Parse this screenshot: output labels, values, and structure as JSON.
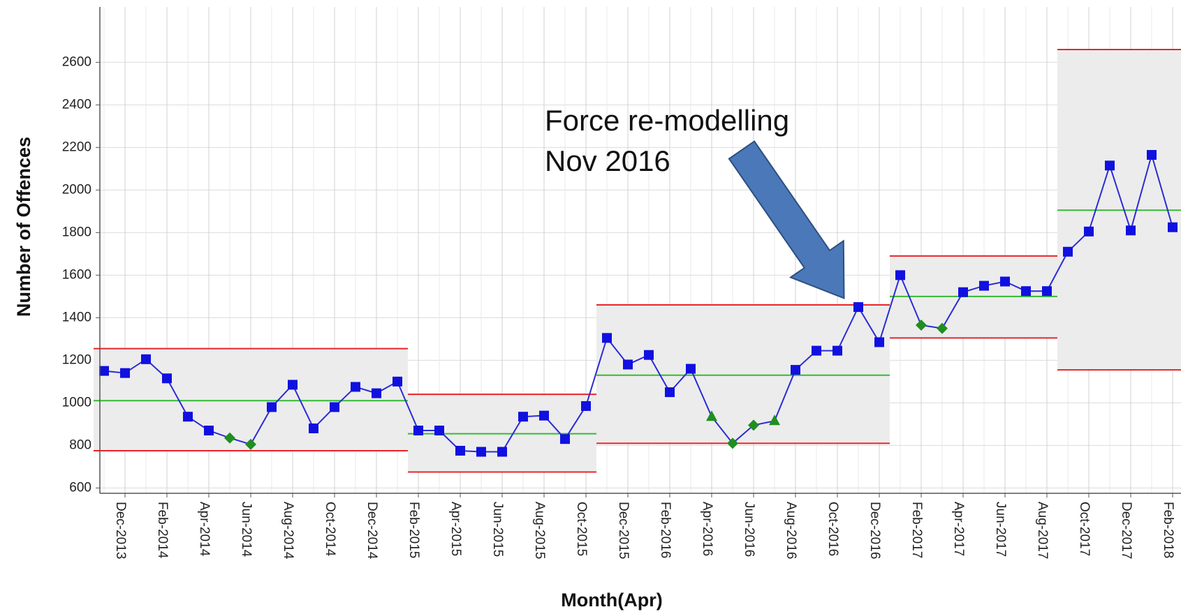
{
  "chart_data": {
    "type": "control",
    "y_label": "Number of Offences",
    "x_label": "Month(Apr)",
    "annotation": [
      "Force re-modelling",
      "Nov 2016"
    ],
    "ylim": [
      575,
      2860
    ],
    "yticks": [
      600,
      800,
      1000,
      1200,
      1400,
      1600,
      1800,
      2000,
      2200,
      2400,
      2600
    ],
    "grid": true,
    "line_color": "#2b2bd6",
    "marker_color": "#1010e0",
    "signal_color": "#1f8f1f",
    "limit_color": "#e8242a",
    "mean_color": "#33bb33",
    "band_color": "#ececec",
    "categories": [
      null,
      "Dec-2013",
      null,
      "Feb-2014",
      null,
      "Apr-2014",
      null,
      "Jun-2014",
      null,
      "Aug-2014",
      null,
      "Oct-2014",
      null,
      "Dec-2014",
      null,
      "Feb-2015",
      null,
      "Apr-2015",
      null,
      "Jun-2015",
      null,
      "Aug-2015",
      null,
      "Oct-2015",
      null,
      "Dec-2015",
      null,
      "Feb-2016",
      null,
      "Apr-2016",
      null,
      "Jun-2016",
      null,
      "Aug-2016",
      null,
      "Oct-2016",
      null,
      "Dec-2016",
      null,
      "Feb-2017",
      null,
      "Apr-2017",
      null,
      "Jun-2017",
      null,
      "Aug-2017",
      null,
      "Oct-2017",
      null,
      "Dec-2017",
      null,
      "Feb-2018"
    ],
    "phases": [
      {
        "ucl": 1255,
        "mean": 1010,
        "lcl": 775,
        "values": [
          1150,
          1140,
          1205,
          1115,
          935,
          870,
          835,
          805,
          980,
          1085,
          880,
          980,
          1075,
          1045,
          1100
        ],
        "markers": [
          "square",
          "square",
          "square",
          "square",
          "square",
          "square",
          "diamond",
          "diamond",
          "square",
          "square",
          "square",
          "square",
          "square",
          "square",
          "square"
        ]
      },
      {
        "ucl": 1040,
        "mean": 855,
        "lcl": 675,
        "values": [
          870,
          870,
          775,
          770,
          770,
          935,
          940,
          830,
          985
        ],
        "markers": [
          "square",
          "square",
          "square",
          "square",
          "square",
          "square",
          "square",
          "square",
          "square"
        ]
      },
      {
        "ucl": 1460,
        "mean": 1130,
        "lcl": 810,
        "values": [
          1305,
          1180,
          1225,
          1050,
          1160,
          935,
          810,
          895,
          915,
          1155,
          1245,
          1245,
          1450,
          1285
        ],
        "markers": [
          "square",
          "square",
          "square",
          "square",
          "square",
          "triangle",
          "diamond",
          "diamond",
          "triangle",
          "square",
          "square",
          "square",
          "square",
          "square"
        ]
      },
      {
        "ucl": 1690,
        "mean": 1500,
        "lcl": 1305,
        "values": [
          1600,
          1365,
          1350,
          1520,
          1550,
          1570,
          1525,
          1525
        ],
        "markers": [
          "square",
          "diamond",
          "diamond",
          "square",
          "square",
          "square",
          "square",
          "square"
        ]
      },
      {
        "ucl": 2660,
        "mean": 1905,
        "lcl": 1155,
        "values": [
          1710,
          1805,
          2115,
          1810,
          2165,
          1825
        ],
        "markers": [
          "square",
          "square",
          "square",
          "square",
          "square",
          "square"
        ]
      }
    ]
  }
}
